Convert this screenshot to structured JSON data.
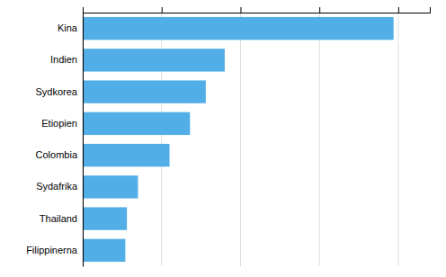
{
  "chart_data": {
    "type": "bar",
    "orientation": "horizontal",
    "categories": [
      "Kina",
      "Indien",
      "Sydkorea",
      "Etiopien",
      "Colombia",
      "Sydafrika",
      "Thailand",
      "Filippinerna"
    ],
    "values": [
      197,
      90,
      78,
      68,
      55,
      35,
      28,
      27
    ],
    "color": "#52aee6",
    "xlim": [
      0,
      220
    ],
    "xticks": [
      0,
      50,
      100,
      150,
      200
    ],
    "grid": true,
    "tick_labels": "y"
  }
}
